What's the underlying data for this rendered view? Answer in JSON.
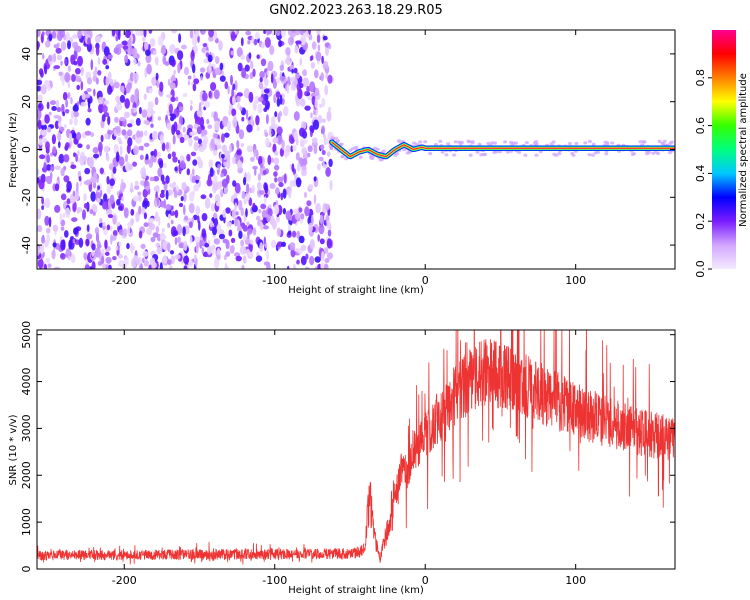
{
  "figure": {
    "title": "GN02.2023.263.18.29.R05"
  },
  "chart_data": [
    {
      "type": "heatmap",
      "xlabel": "Height of straight line (km)",
      "ylabel": "Frequency (Hz)",
      "xlim": [
        -258,
        166
      ],
      "ylim": [
        -50,
        50
      ],
      "xticks": [
        -200,
        -100,
        0,
        100
      ],
      "yticks": [
        -40,
        -20,
        0,
        20,
        40
      ],
      "colorbar": {
        "label": "Normalized spectral amplitude",
        "range": [
          0,
          1
        ],
        "ticks": [
          0.0,
          0.2,
          0.4,
          0.6,
          0.8
        ],
        "colormap": [
          "#f4eaff",
          "#d2a6ff",
          "#7a1cff",
          "#0000ff",
          "#00c8ff",
          "#00ff7f",
          "#33ff00",
          "#ffff00",
          "#ff8000",
          "#ff0000",
          "#ff0090"
        ]
      },
      "noise_region": {
        "x_start": -258,
        "x_end": -62,
        "level": 0.1
      },
      "signal_track": {
        "x_start": -62,
        "x": [
          -62,
          -56,
          -50,
          -44,
          -38,
          -32,
          -26,
          -20,
          -14,
          -8,
          -2,
          0,
          50,
          100,
          166
        ],
        "freq": [
          3,
          0,
          -3,
          -1,
          0,
          -2,
          -3,
          0,
          2,
          0,
          1,
          0.5,
          0.5,
          0.5,
          0.5
        ],
        "amplitude": [
          0.3,
          0.35,
          0.4,
          0.45,
          0.5,
          0.55,
          0.6,
          0.65,
          0.75,
          0.85,
          0.95,
          0.95,
          0.95,
          0.95,
          0.95
        ]
      }
    },
    {
      "type": "line",
      "xlabel": "Height of straight line (km)",
      "ylabel": "SNR (10 * v/v)",
      "xlim": [
        -258,
        166
      ],
      "ylim": [
        0,
        5100
      ],
      "xticks": [
        -200,
        -100,
        0,
        100
      ],
      "yticks": [
        0,
        1000,
        2000,
        3000,
        4000,
        5000
      ],
      "color": "#ee3333",
      "series": [
        {
          "envelope_x": [
            -258,
            -200,
            -100,
            -45,
            -40,
            -37,
            -34,
            -30,
            -28,
            -25,
            -22,
            -18,
            -15,
            -12,
            -8,
            -5,
            0,
            10,
            20,
            30,
            40,
            50,
            60,
            80,
            100,
            120,
            140,
            166
          ],
          "envelope_y": [
            290,
            300,
            320,
            330,
            500,
            1600,
            700,
            200,
            500,
            800,
            1300,
            1800,
            2300,
            2000,
            2600,
            2500,
            2900,
            3300,
            3700,
            4000,
            4200,
            4150,
            4000,
            3700,
            3400,
            3150,
            2950,
            2750
          ]
        }
      ]
    }
  ]
}
